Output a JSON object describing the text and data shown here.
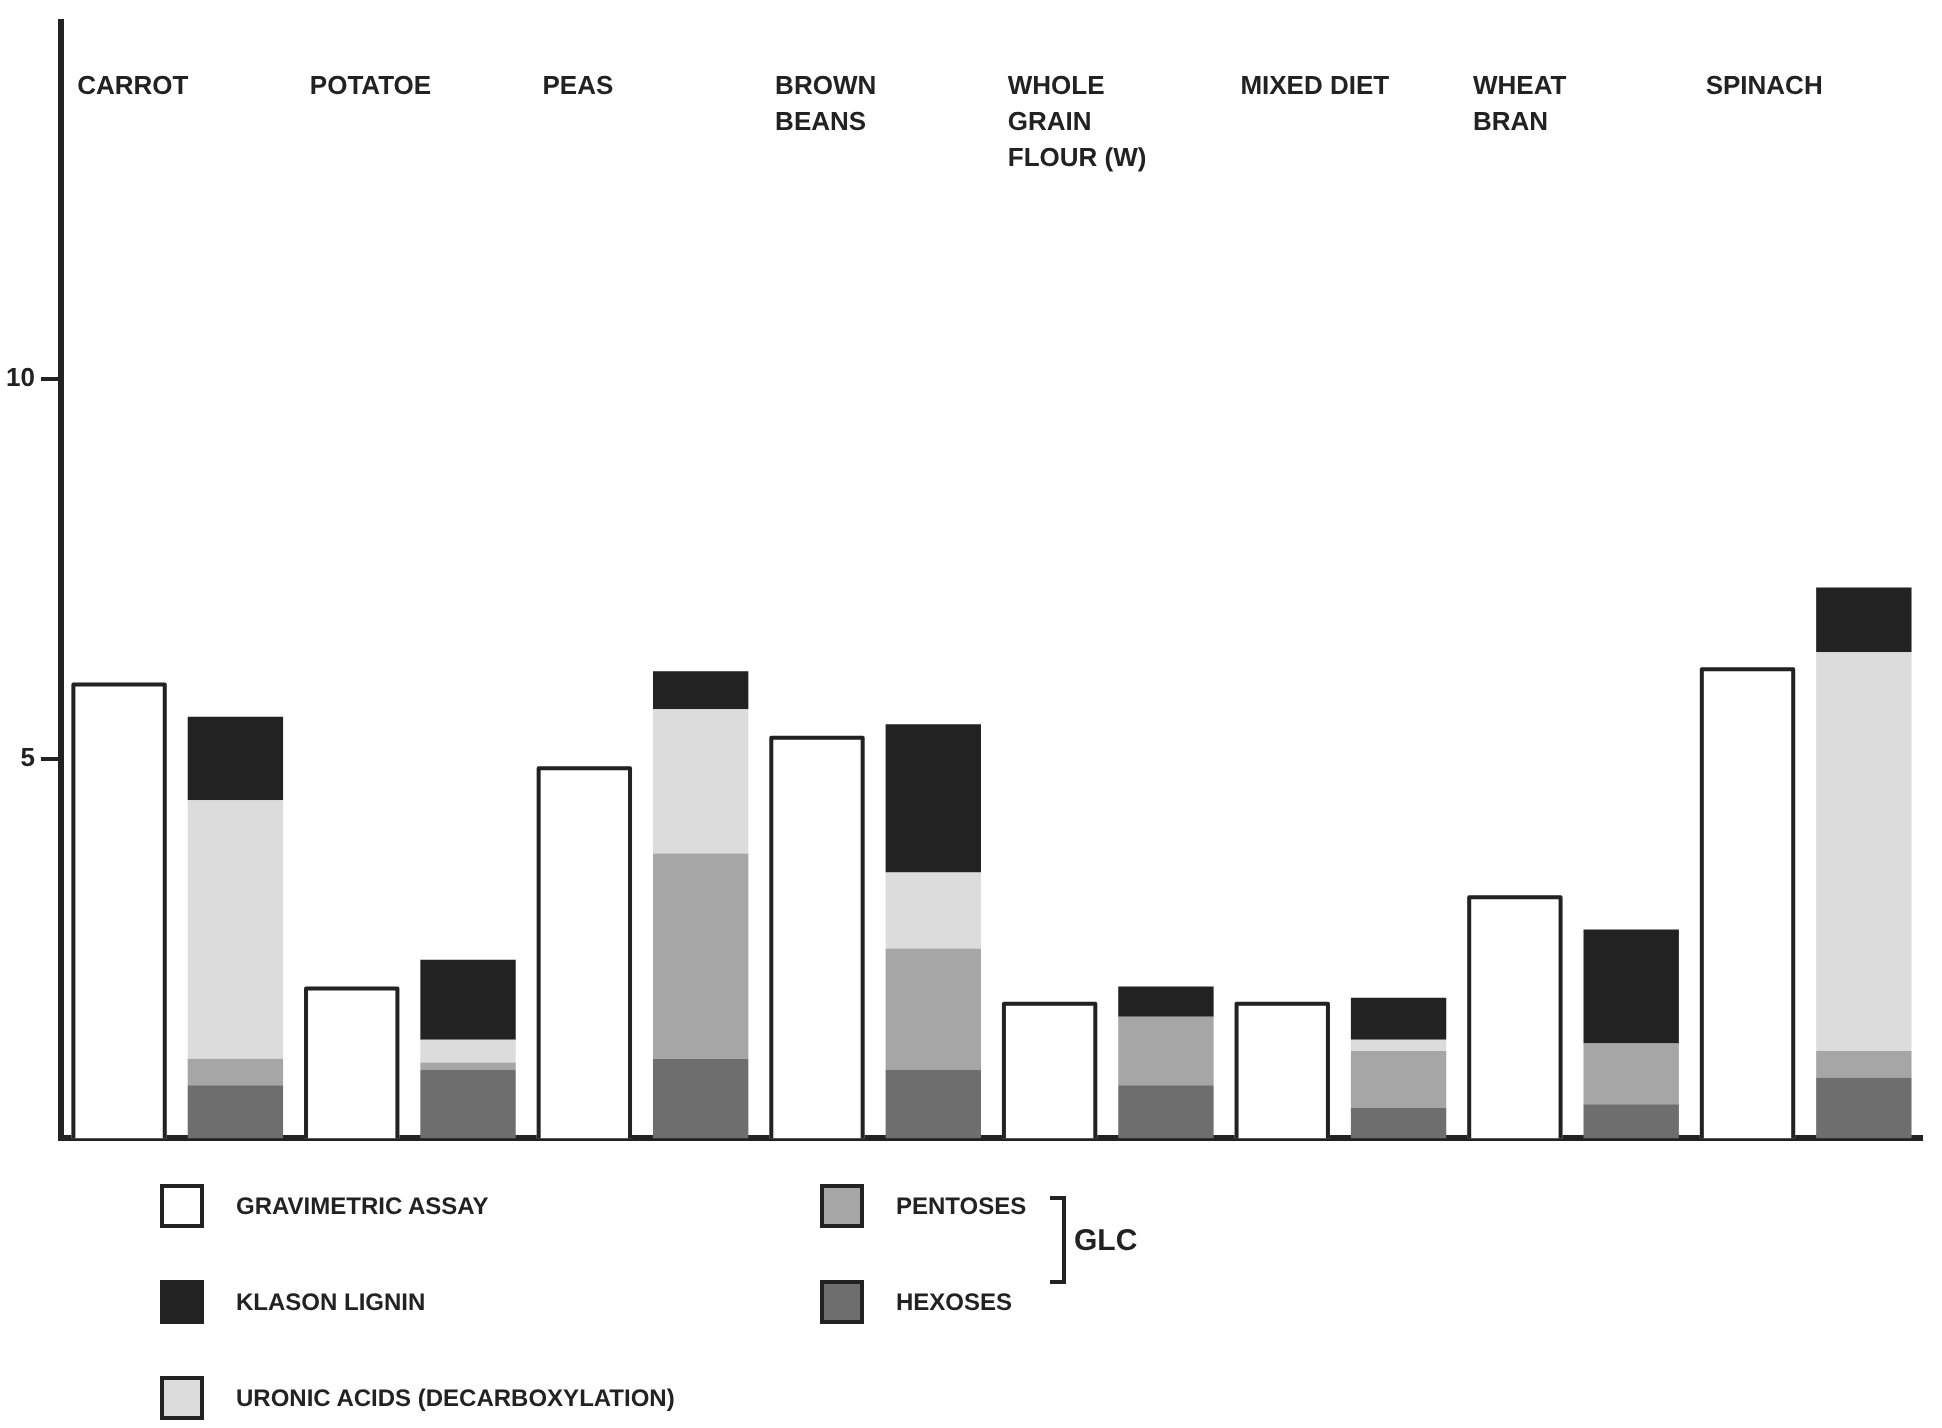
{
  "chart_data": {
    "type": "bar",
    "stacked": true,
    "categories": [
      "CARROT",
      null,
      "POTATOE",
      null,
      "PEAS",
      null,
      "BROWN BEANS",
      null,
      "WHOLE GRAIN FLOUR (W)",
      null,
      "MIXED DIET",
      null,
      "WHEAT BRAN",
      null,
      "SPINACH",
      null
    ],
    "series": [
      {
        "name": "GRAVIMETRIC ASSAY",
        "color": "#ffffff",
        "values": [
          6.0,
          null,
          2.0,
          null,
          4.9,
          null,
          5.3,
          null,
          1.8,
          null,
          1.8,
          null,
          3.2,
          null,
          6.2,
          null
        ]
      },
      {
        "name": "HEXOSES",
        "color": "#6e6e6e",
        "values": [
          null,
          0.7,
          null,
          0.9,
          null,
          1.05,
          null,
          0.9,
          null,
          0.7,
          null,
          0.4,
          null,
          0.45,
          null,
          0.8
        ]
      },
      {
        "name": "PENTOSES",
        "color": "#a6a6a6",
        "values": [
          null,
          0.35,
          null,
          0.1,
          null,
          2.7,
          null,
          1.6,
          null,
          0.9,
          null,
          0.75,
          null,
          0.8,
          null,
          0.35
        ]
      },
      {
        "name": "URONIC ACIDS (DECARBOXYLATION)",
        "color": "#dcdcdc",
        "values": [
          null,
          3.4,
          null,
          0.3,
          null,
          1.9,
          null,
          1.0,
          null,
          0,
          null,
          0.15,
          null,
          0,
          null,
          5.25
        ]
      },
      {
        "name": "KLASON LIGNIN",
        "color": "#222222",
        "values": [
          null,
          1.1,
          null,
          1.05,
          null,
          0.5,
          null,
          1.95,
          null,
          0.4,
          null,
          0.55,
          null,
          1.5,
          null,
          0.85
        ]
      }
    ],
    "ylim": [
      0,
      14.7
    ],
    "yticks": [
      5,
      10
    ],
    "grid": false,
    "legend": "bottom",
    "annotations": [
      "GLC"
    ]
  }
}
